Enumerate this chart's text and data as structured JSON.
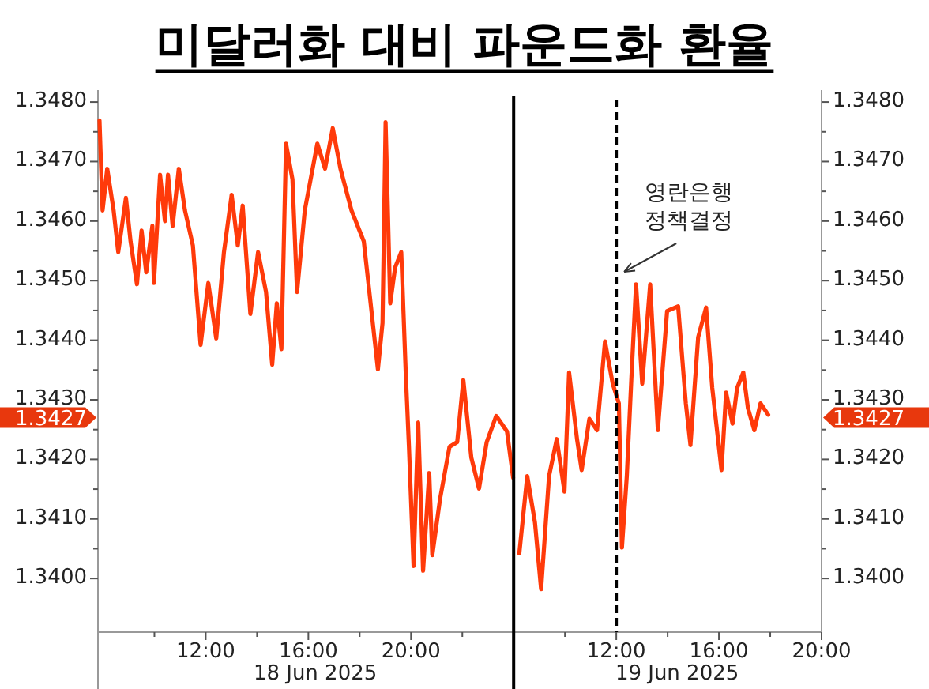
{
  "chart_data": [
    {
      "type": "line",
      "title": "미달러화 대비 파운드화 환율",
      "xlabel": "18 Jun 2025",
      "xlim": [
        7.8,
        24
      ],
      "xticks": [
        {
          "value": 10,
          "label": null
        },
        {
          "value": 12,
          "label": "12:00"
        },
        {
          "value": 14,
          "label": null
        },
        {
          "value": 16,
          "label": "16:00"
        },
        {
          "value": 18,
          "label": null
        },
        {
          "value": 20,
          "label": "20:00"
        },
        {
          "value": 22,
          "label": null
        }
      ],
      "ylim": [
        1.3391,
        1.3482
      ],
      "yticks": [
        {
          "value": 1.34,
          "label": "1.3400"
        },
        {
          "value": 1.3405,
          "label": null
        },
        {
          "value": 1.341,
          "label": "1.3410"
        },
        {
          "value": 1.3415,
          "label": null
        },
        {
          "value": 1.342,
          "label": "1.3420"
        },
        {
          "value": 1.3425,
          "label": null
        },
        {
          "value": 1.3427,
          "label": "1.3427"
        },
        {
          "value": 1.343,
          "label": "1.3430"
        },
        {
          "value": 1.3435,
          "label": null
        },
        {
          "value": 1.344,
          "label": "1.3440"
        },
        {
          "value": 1.3445,
          "label": null
        },
        {
          "value": 1.345,
          "label": "1.3450"
        },
        {
          "value": 1.3455,
          "label": null
        },
        {
          "value": 1.346,
          "label": "1.3460"
        },
        {
          "value": 1.3465,
          "label": null
        },
        {
          "value": 1.347,
          "label": "1.3470"
        },
        {
          "value": 1.3475,
          "label": null
        },
        {
          "value": 1.348,
          "label": "1.3480"
        }
      ],
      "series": [
        {
          "color": "#ff3a0a",
          "x": [
            7.86,
            7.98,
            8.16,
            8.41,
            8.59,
            8.89,
            9.07,
            9.32,
            9.5,
            9.68,
            9.92,
            9.98,
            10.22,
            10.41,
            10.53,
            10.71,
            10.95,
            11.19,
            11.5,
            11.8,
            12.1,
            12.41,
            12.71,
            13.01,
            13.25,
            13.44,
            13.74,
            14.04,
            14.35,
            14.59,
            14.77,
            14.95,
            15.13,
            15.38,
            15.56,
            15.86,
            16.35,
            16.65,
            16.95,
            17.25,
            17.68,
            18.16,
            18.71,
            18.89,
            19.01,
            19.19,
            19.38,
            19.62,
            19.8,
            19.92,
            20.1,
            20.28,
            20.47,
            20.71,
            20.83,
            21.13,
            21.5,
            21.8,
            22.04,
            22.35,
            22.65,
            22.95,
            23.32,
            23.74,
            23.98
          ],
          "values": [
            1.34769,
            1.34618,
            1.34688,
            1.34618,
            1.34548,
            1.34639,
            1.34566,
            1.34494,
            1.34584,
            1.34514,
            1.34592,
            1.34496,
            1.34678,
            1.346,
            1.34678,
            1.34592,
            1.34688,
            1.34618,
            1.34559,
            1.34392,
            1.34496,
            1.34403,
            1.34548,
            1.34644,
            1.34559,
            1.34626,
            1.34444,
            1.34548,
            1.34481,
            1.34359,
            1.34462,
            1.34385,
            1.3473,
            1.3467,
            1.34481,
            1.34618,
            1.3473,
            1.34688,
            1.34756,
            1.34688,
            1.34618,
            1.34566,
            1.34351,
            1.34429,
            1.34766,
            1.34462,
            1.34522,
            1.34548,
            1.3434,
            1.34221,
            1.34021,
            1.34262,
            1.34013,
            1.34177,
            1.34039,
            1.34133,
            1.34221,
            1.34229,
            1.34333,
            1.34203,
            1.34151,
            1.34229,
            1.34273,
            1.34247,
            1.34169
          ]
        }
      ]
    },
    {
      "type": "line",
      "xlabel": "19 Jun 2025",
      "xlim": [
        8,
        20
      ],
      "xticks": [
        {
          "value": 10,
          "label": null
        },
        {
          "value": 12,
          "label": "12:00"
        },
        {
          "value": 14,
          "label": null
        },
        {
          "value": 16,
          "label": "16:00"
        },
        {
          "value": 18,
          "label": null
        },
        {
          "value": 20,
          "label": "20:00"
        }
      ],
      "y2lim": [
        1.3391,
        1.3482
      ],
      "y2ticks": [
        {
          "value": 1.34,
          "label": "1.3400"
        },
        {
          "value": 1.3405,
          "label": null
        },
        {
          "value": 1.341,
          "label": "1.3410"
        },
        {
          "value": 1.3415,
          "label": null
        },
        {
          "value": 1.342,
          "label": "1.3420"
        },
        {
          "value": 1.3425,
          "label": null
        },
        {
          "value": 1.3427,
          "label": "1.3427"
        },
        {
          "value": 1.343,
          "label": "1.3430"
        },
        {
          "value": 1.3435,
          "label": null
        },
        {
          "value": 1.344,
          "label": "1.3440"
        },
        {
          "value": 1.3445,
          "label": null
        },
        {
          "value": 1.345,
          "label": "1.3450"
        },
        {
          "value": 1.3455,
          "label": null
        },
        {
          "value": 1.346,
          "label": "1.3460"
        },
        {
          "value": 1.3465,
          "label": null
        },
        {
          "value": 1.347,
          "label": "1.3470"
        },
        {
          "value": 1.3475,
          "label": null
        },
        {
          "value": 1.348,
          "label": "1.3480"
        }
      ],
      "ref_lines": [
        {
          "axis": "x",
          "value": 12,
          "label": "영란은행 정책결정",
          "color": "#000000",
          "line_style": "dashed"
        }
      ],
      "series": [
        {
          "color": "#ff3a0a",
          "axis": "y2",
          "x": [
            8.22,
            8.53,
            8.83,
            9.07,
            9.38,
            9.68,
            9.98,
            10.16,
            10.47,
            10.65,
            10.95,
            11.25,
            11.56,
            11.86,
            12.1,
            12.22,
            12.41,
            12.59,
            12.77,
            13.01,
            13.32,
            13.62,
            13.98,
            14.41,
            14.71,
            14.89,
            15.19,
            15.5,
            15.74,
            16.1,
            16.28,
            16.53,
            16.71,
            16.95,
            17.13,
            17.38,
            17.62,
            17.92
          ],
          "values": [
            1.34042,
            1.34172,
            1.34094,
            1.33982,
            1.34172,
            1.34234,
            1.34146,
            1.34346,
            1.34234,
            1.34182,
            1.34268,
            1.34249,
            1.34398,
            1.34327,
            1.34294,
            1.34052,
            1.34172,
            1.34338,
            1.34494,
            1.34327,
            1.34494,
            1.34249,
            1.34449,
            1.34457,
            1.34294,
            1.34224,
            1.34405,
            1.34455,
            1.3432,
            1.34182,
            1.34312,
            1.3426,
            1.3432,
            1.34346,
            1.34286,
            1.34249,
            1.34294,
            1.34275
          ]
        }
      ]
    }
  ]
}
